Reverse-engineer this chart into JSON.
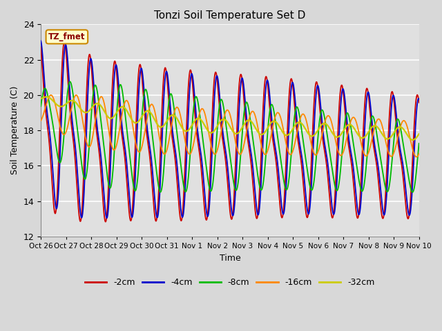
{
  "title": "Tonzi Soil Temperature Set D",
  "xlabel": "Time",
  "ylabel": "Soil Temperature (C)",
  "ylim": [
    12,
    24
  ],
  "yticks": [
    12,
    14,
    16,
    18,
    20,
    22,
    24
  ],
  "annotation": "TZ_fmet",
  "legend_labels": [
    "-2cm",
    "-4cm",
    "-8cm",
    "-16cm",
    "-32cm"
  ],
  "legend_colors": [
    "#cc0000",
    "#0000cc",
    "#00bb00",
    "#ff8800",
    "#cccc00"
  ],
  "bg_color": "#d8d8d8",
  "plot_bg_color": "#e0e0e0",
  "grid_color": "#ffffff",
  "xtick_labels": [
    "Oct 26",
    "Oct 27",
    "Oct 28",
    "Oct 29",
    "Oct 30",
    "Oct 31",
    "Nov 1",
    "Nov 2",
    "Nov 3",
    "Nov 4",
    "Nov 5",
    "Nov 6",
    "Nov 7",
    "Nov 8",
    "Nov 9",
    "Nov 10"
  ],
  "num_days": 15,
  "ppd": 480
}
